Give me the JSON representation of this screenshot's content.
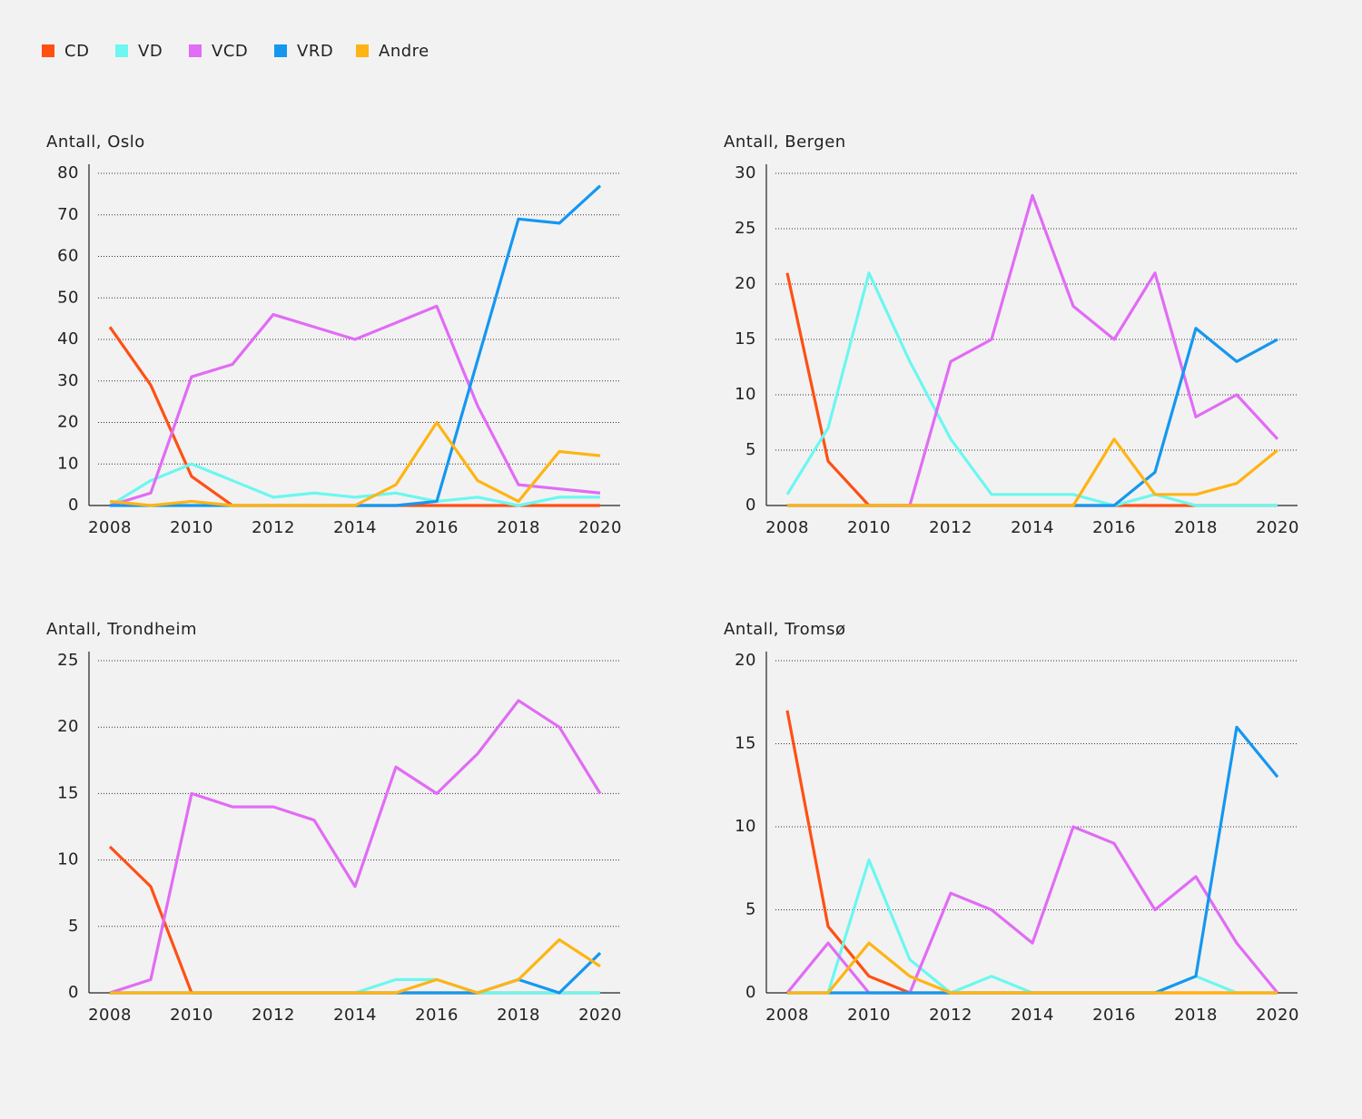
{
  "chart_data": [
    {
      "type": "line",
      "title": "Antall, Oslo",
      "x": [
        2008,
        2009,
        2010,
        2011,
        2012,
        2013,
        2014,
        2015,
        2016,
        2017,
        2018,
        2019,
        2020
      ],
      "xlim": [
        2008,
        2020
      ],
      "xticks": [
        2008,
        2010,
        2012,
        2014,
        2016,
        2018,
        2020
      ],
      "ylim": [
        0,
        80
      ],
      "yticks": [
        0,
        10,
        20,
        30,
        40,
        50,
        60,
        70,
        80
      ],
      "grid": true,
      "series": [
        {
          "name": "CD",
          "color": "#ff5014",
          "values": [
            43,
            29,
            7,
            0,
            0,
            0,
            0,
            0,
            0,
            0,
            0,
            0,
            0
          ]
        },
        {
          "name": "VD",
          "color": "#6cf7f0",
          "values": [
            0,
            6,
            10,
            6,
            2,
            3,
            2,
            3,
            1,
            2,
            0,
            2,
            2
          ]
        },
        {
          "name": "VCD",
          "color": "#e16cf5",
          "values": [
            0,
            3,
            31,
            34,
            46,
            43,
            40,
            44,
            48,
            24,
            5,
            4,
            3
          ]
        },
        {
          "name": "VRD",
          "color": "#1597f0",
          "values": [
            0,
            0,
            0,
            0,
            0,
            0,
            0,
            0,
            1,
            35,
            69,
            68,
            77
          ]
        },
        {
          "name": "Andre",
          "color": "#ffb414",
          "values": [
            1,
            0,
            1,
            0,
            0,
            0,
            0,
            5,
            20,
            6,
            1,
            13,
            12
          ]
        }
      ]
    },
    {
      "type": "line",
      "title": "Antall, Bergen",
      "x": [
        2008,
        2009,
        2010,
        2011,
        2012,
        2013,
        2014,
        2015,
        2016,
        2017,
        2018,
        2019,
        2020
      ],
      "xlim": [
        2008,
        2020
      ],
      "xticks": [
        2008,
        2010,
        2012,
        2014,
        2016,
        2018,
        2020
      ],
      "ylim": [
        0,
        30
      ],
      "yticks": [
        0,
        5,
        10,
        15,
        20,
        25,
        30
      ],
      "grid": true,
      "series": [
        {
          "name": "CD",
          "color": "#ff5014",
          "values": [
            21,
            4,
            0,
            0,
            0,
            0,
            0,
            0,
            0,
            0,
            0,
            0,
            0
          ]
        },
        {
          "name": "VD",
          "color": "#6cf7f0",
          "values": [
            1,
            7,
            21,
            13,
            6,
            1,
            1,
            1,
            0,
            1,
            0,
            0,
            0
          ]
        },
        {
          "name": "VCD",
          "color": "#e16cf5",
          "values": [
            0,
            0,
            0,
            0,
            13,
            15,
            28,
            18,
            15,
            21,
            8,
            10,
            6
          ]
        },
        {
          "name": "VRD",
          "color": "#1597f0",
          "values": [
            0,
            0,
            0,
            0,
            0,
            0,
            0,
            0,
            0,
            3,
            16,
            13,
            15
          ]
        },
        {
          "name": "Andre",
          "color": "#ffb414",
          "values": [
            0,
            0,
            0,
            0,
            0,
            0,
            0,
            0,
            6,
            1,
            1,
            2,
            5
          ]
        }
      ]
    },
    {
      "type": "line",
      "title": "Antall, Trondheim",
      "x": [
        2008,
        2009,
        2010,
        2011,
        2012,
        2013,
        2014,
        2015,
        2016,
        2017,
        2018,
        2019,
        2020
      ],
      "xlim": [
        2008,
        2020
      ],
      "xticks": [
        2008,
        2010,
        2012,
        2014,
        2016,
        2018,
        2020
      ],
      "ylim": [
        0,
        25
      ],
      "yticks": [
        0,
        5,
        10,
        15,
        20,
        25
      ],
      "grid": true,
      "series": [
        {
          "name": "CD",
          "color": "#ff5014",
          "values": [
            11,
            8,
            0,
            0,
            0,
            0,
            0,
            0,
            0,
            0,
            0,
            0,
            0
          ]
        },
        {
          "name": "VD",
          "color": "#6cf7f0",
          "values": [
            0,
            0,
            0,
            0,
            0,
            0,
            0,
            1,
            1,
            0,
            0,
            0,
            0
          ]
        },
        {
          "name": "VCD",
          "color": "#e16cf5",
          "values": [
            0,
            1,
            15,
            14,
            14,
            13,
            8,
            17,
            15,
            18,
            22,
            20,
            15
          ]
        },
        {
          "name": "VRD",
          "color": "#1597f0",
          "values": [
            0,
            0,
            0,
            0,
            0,
            0,
            0,
            0,
            0,
            0,
            1,
            0,
            3
          ]
        },
        {
          "name": "Andre",
          "color": "#ffb414",
          "values": [
            0,
            0,
            0,
            0,
            0,
            0,
            0,
            0,
            1,
            0,
            1,
            4,
            2
          ]
        }
      ]
    },
    {
      "type": "line",
      "title": "Antall, Tromsø",
      "x": [
        2008,
        2009,
        2010,
        2011,
        2012,
        2013,
        2014,
        2015,
        2016,
        2017,
        2018,
        2019,
        2020
      ],
      "xlim": [
        2008,
        2020
      ],
      "xticks": [
        2008,
        2010,
        2012,
        2014,
        2016,
        2018,
        2020
      ],
      "ylim": [
        0,
        20
      ],
      "yticks": [
        0,
        5,
        10,
        15,
        20
      ],
      "grid": true,
      "series": [
        {
          "name": "CD",
          "color": "#ff5014",
          "values": [
            17,
            4,
            1,
            0,
            0,
            0,
            0,
            0,
            0,
            0,
            0,
            0,
            0
          ]
        },
        {
          "name": "VD",
          "color": "#6cf7f0",
          "values": [
            0,
            0,
            8,
            2,
            0,
            1,
            0,
            0,
            0,
            0,
            1,
            0,
            0
          ]
        },
        {
          "name": "VCD",
          "color": "#e16cf5",
          "values": [
            0,
            3,
            0,
            0,
            6,
            5,
            3,
            10,
            9,
            5,
            7,
            3,
            0
          ]
        },
        {
          "name": "VRD",
          "color": "#1597f0",
          "values": [
            0,
            0,
            0,
            0,
            0,
            0,
            0,
            0,
            0,
            0,
            1,
            16,
            13
          ]
        },
        {
          "name": "Andre",
          "color": "#ffb414",
          "values": [
            0,
            0,
            3,
            1,
            0,
            0,
            0,
            0,
            0,
            0,
            0,
            0,
            0
          ]
        }
      ]
    }
  ]
}
